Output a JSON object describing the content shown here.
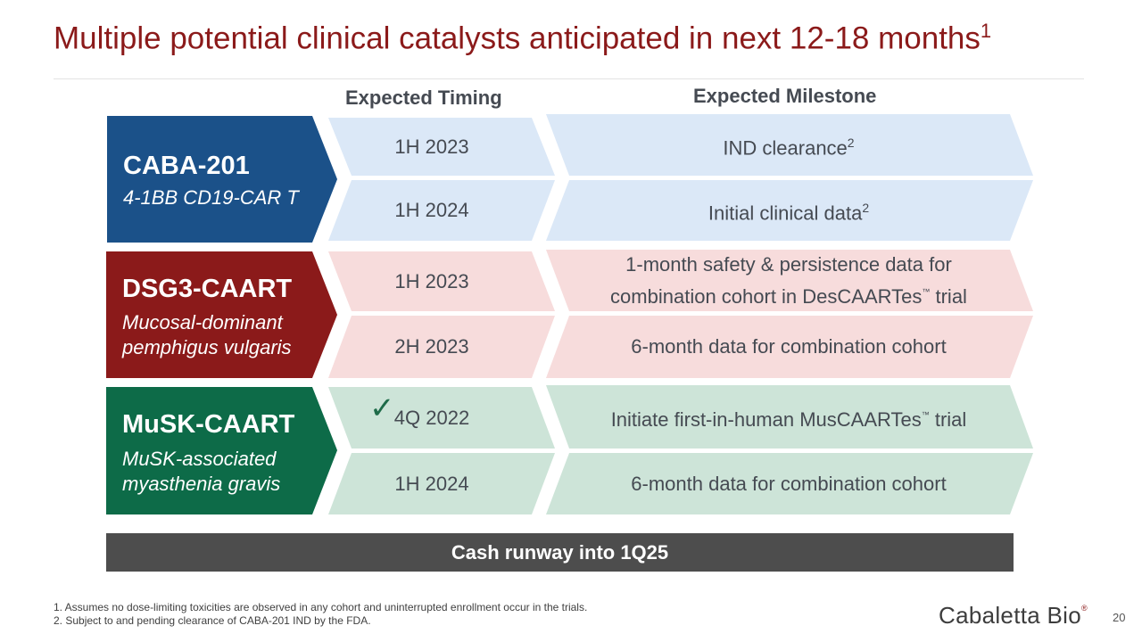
{
  "title": {
    "text": "Multiple potential clinical catalysts anticipated in next 12-18 months",
    "sup": "1"
  },
  "columns": {
    "timing": "Expected Timing",
    "milestone": "Expected Milestone"
  },
  "programs": [
    {
      "name": "CABA-201",
      "subtitle": [
        "4-1BB CD19-CAR T"
      ],
      "color": "#1b5189",
      "seg_color": "#dbe8f7",
      "rows": [
        {
          "timing": "1H 2023",
          "milestone": "IND clearance",
          "milestone_sup": "2"
        },
        {
          "timing": "1H 2024",
          "milestone": "Initial clinical data",
          "milestone_sup": "2"
        }
      ]
    },
    {
      "name": "DSG3-CAART",
      "subtitle": [
        "Mucosal-dominant",
        "pemphigus vulgaris"
      ],
      "color": "#8b1a1a",
      "seg_color": "#f7dcdc",
      "rows": [
        {
          "timing": "1H 2023",
          "milestone_line1": "1-month safety & persistence data for",
          "milestone_line2_a": "combination cohort in DesCAARTes",
          "tm": "™",
          "milestone_line2_b": " trial"
        },
        {
          "timing": "2H 2023",
          "milestone": "6-month data for combination cohort"
        }
      ]
    },
    {
      "name": "MuSK-CAART",
      "subtitle": [
        "MuSK-associated",
        "myasthenia gravis"
      ],
      "color": "#0d6b48",
      "seg_color": "#cde4d8",
      "rows": [
        {
          "timing": "4Q 2022",
          "completed": true,
          "milestone_a": "Initiate first-in-human MusCAARTes",
          "tm": "™",
          "milestone_b": " trial"
        },
        {
          "timing": "1H 2024",
          "milestone": "6-month data for combination cohort"
        }
      ]
    }
  ],
  "check_icon": "checkmark-icon",
  "banner": "Cash runway into 1Q25",
  "footnotes": [
    "1. Assumes no dose-limiting toxicities are observed in any cohort and uninterrupted enrollment occur in the trials.",
    "2. Subject to and pending clearance of CABA-201 IND by the FDA."
  ],
  "logo": {
    "text": "Cabaletta Bio",
    "reg": "®"
  },
  "page_number": "20"
}
